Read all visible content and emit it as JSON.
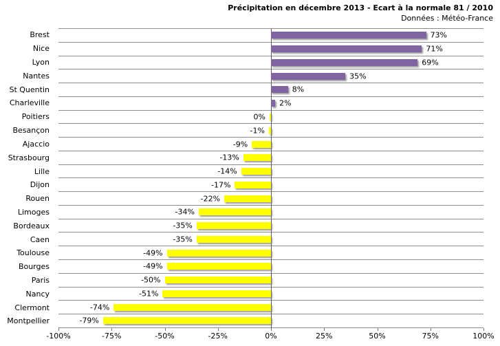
{
  "chart_data": {
    "type": "bar",
    "orientation": "horizontal",
    "title": "Précipitation en décembre 2013 - Ecart à la normale 81 / 2010",
    "subtitle": "Données : Météo-France",
    "categories": [
      "Brest",
      "Nice",
      "Lyon",
      "Nantes",
      "St Quentin",
      "Charleville",
      "Poitiers",
      "Besançon",
      "Ajaccio",
      "Strasbourg",
      "Lille",
      "Dijon",
      "Rouen",
      "Limoges",
      "Bordeaux",
      "Caen",
      "Toulouse",
      "Bourges",
      "Paris",
      "Nancy",
      "Clermont",
      "Montpellier"
    ],
    "values": [
      73,
      71,
      69,
      35,
      8,
      2,
      0,
      -1,
      -9,
      -13,
      -14,
      -17,
      -22,
      -34,
      -35,
      -35,
      -49,
      -49,
      -50,
      -51,
      -74,
      -79
    ],
    "value_labels": [
      "73%",
      "71%",
      "69%",
      "35%",
      "8%",
      "2%",
      "0%",
      "-1%",
      "-9%",
      "-13%",
      "-14%",
      "-17%",
      "-22%",
      "-34%",
      "-35%",
      "-35%",
      "-49%",
      "-49%",
      "-50%",
      "-51%",
      "-74%",
      "-79%"
    ],
    "x_ticks": [
      "-100%",
      "-75%",
      "-50%",
      "-25%",
      "0%",
      "25%",
      "50%",
      "75%",
      "100%"
    ],
    "xlim": [
      -100,
      100
    ],
    "xlabel": "",
    "ylabel": "",
    "legend": "none",
    "grid": "horizontal-category-separators",
    "positive_color": "#8064A2",
    "negative_color": "#FFFF00",
    "separator_color": "#8C8C8C",
    "zero_axis_color": "#595959"
  }
}
